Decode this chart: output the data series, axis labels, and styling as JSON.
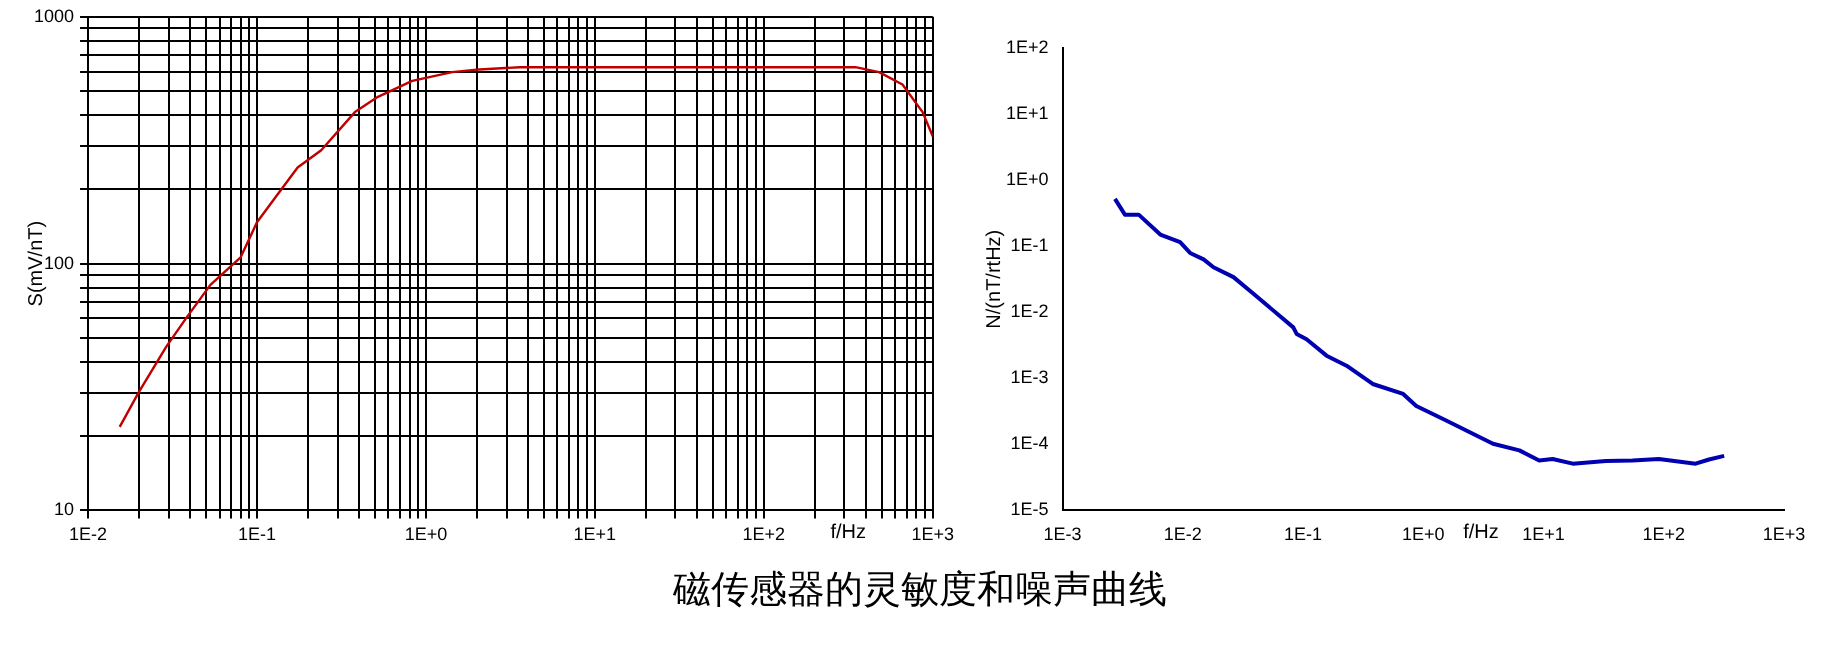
{
  "chart_data": [
    {
      "type": "line",
      "xlabel": "f/Hz",
      "ylabel": "S(mV/nT)",
      "log": "xy",
      "grid": true,
      "legend": false,
      "marker": "none",
      "line_style": "solid",
      "xlim": [
        0.01,
        1000
      ],
      "ylim": [
        10,
        1000
      ],
      "xticks": [
        {
          "value": 0.01,
          "label": "1E-2"
        },
        {
          "value": 0.02,
          "label": null
        },
        {
          "value": 0.03,
          "label": null
        },
        {
          "value": 0.04,
          "label": null
        },
        {
          "value": 0.05,
          "label": null
        },
        {
          "value": 0.06,
          "label": null
        },
        {
          "value": 0.07,
          "label": null
        },
        {
          "value": 0.08,
          "label": null
        },
        {
          "value": 0.09,
          "label": null
        },
        {
          "value": 0.1,
          "label": "1E-1"
        },
        {
          "value": 0.2,
          "label": null
        },
        {
          "value": 0.3,
          "label": null
        },
        {
          "value": 0.4,
          "label": null
        },
        {
          "value": 0.5,
          "label": null
        },
        {
          "value": 0.6,
          "label": null
        },
        {
          "value": 0.7,
          "label": null
        },
        {
          "value": 0.8,
          "label": null
        },
        {
          "value": 0.9,
          "label": null
        },
        {
          "value": 1,
          "label": "1E+0"
        },
        {
          "value": 2,
          "label": null
        },
        {
          "value": 3,
          "label": null
        },
        {
          "value": 4,
          "label": null
        },
        {
          "value": 5,
          "label": null
        },
        {
          "value": 6,
          "label": null
        },
        {
          "value": 7,
          "label": null
        },
        {
          "value": 8,
          "label": null
        },
        {
          "value": 9,
          "label": null
        },
        {
          "value": 10,
          "label": "1E+1"
        },
        {
          "value": 20,
          "label": null
        },
        {
          "value": 30,
          "label": null
        },
        {
          "value": 40,
          "label": null
        },
        {
          "value": 50,
          "label": null
        },
        {
          "value": 60,
          "label": null
        },
        {
          "value": 70,
          "label": null
        },
        {
          "value": 80,
          "label": null
        },
        {
          "value": 90,
          "label": null
        },
        {
          "value": 100,
          "label": "1E+2"
        },
        {
          "value": 200,
          "label": null
        },
        {
          "value": 300,
          "label": null
        },
        {
          "value": 400,
          "label": null
        },
        {
          "value": 500,
          "label": null
        },
        {
          "value": 600,
          "label": null
        },
        {
          "value": 700,
          "label": null
        },
        {
          "value": 800,
          "label": null
        },
        {
          "value": 900,
          "label": null
        },
        {
          "value": 1000,
          "label": "1E+3"
        }
      ],
      "yticks": [
        10,
        {
          "value": 20,
          "label": null
        },
        {
          "value": 30,
          "label": null
        },
        {
          "value": 40,
          "label": null
        },
        {
          "value": 50,
          "label": null
        },
        {
          "value": 60,
          "label": null
        },
        {
          "value": 70,
          "label": null
        },
        {
          "value": 80,
          "label": null
        },
        {
          "value": 90,
          "label": null
        },
        100,
        {
          "value": 200,
          "label": null
        },
        {
          "value": 300,
          "label": null
        },
        {
          "value": 400,
          "label": null
        },
        {
          "value": 500,
          "label": null
        },
        {
          "value": 600,
          "label": null
        },
        {
          "value": 700,
          "label": null
        },
        {
          "value": 800,
          "label": null
        },
        {
          "value": 900,
          "label": null
        },
        1000
      ],
      "series": [
        {
          "color": "#c00000",
          "x": [
            0.0154,
            0.0199,
            0.029,
            0.038,
            0.053,
            0.08,
            0.1,
            0.132,
            0.174,
            0.24,
            0.38,
            0.52,
            0.83,
            1.43,
            2.07,
            3.6,
            349,
            481,
            662,
            871,
            1000
          ],
          "values": [
            21.8,
            30,
            46,
            60,
            82,
            106,
            147,
            190,
            245,
            288,
            411,
            474,
            550,
            597,
            612,
            625,
            625,
            597,
            532,
            411,
            328
          ]
        }
      ],
      "annotations": [
        "磁传感器的灵敏度和噪声曲线"
      ]
    },
    {
      "type": "line",
      "xlabel": "f/Hz",
      "ylabel": "N/(nT/rtHz)",
      "log": "xy",
      "grid": false,
      "legend": false,
      "marker": "none",
      "line_style": "solid",
      "xlim": [
        0.001,
        1000
      ],
      "ylim": [
        1e-05,
        100
      ],
      "xticks": [
        {
          "value": 0.001,
          "label": "1E-3"
        },
        {
          "value": 0.01,
          "label": "1E-2"
        },
        {
          "value": 0.1,
          "label": "1E-1"
        },
        {
          "value": 1,
          "label": "1E+0"
        },
        {
          "value": 10,
          "label": "1E+1"
        },
        {
          "value": 100,
          "label": "1E+2"
        },
        {
          "value": 1000,
          "label": "1E+3"
        }
      ],
      "yticks": [
        {
          "value": 1e-05,
          "label": "1E-5"
        },
        {
          "value": 0.0001,
          "label": "1E-4"
        },
        {
          "value": 0.001,
          "label": "1E-3"
        },
        {
          "value": 0.01,
          "label": "1E-2"
        },
        {
          "value": 0.1,
          "label": "1E-1"
        },
        {
          "value": 1,
          "label": "1E+0"
        },
        {
          "value": 10,
          "label": "1E+1"
        },
        {
          "value": 100,
          "label": "1E+2"
        }
      ],
      "series": [
        {
          "color": "#0000b0",
          "x": [
            0.00273,
            0.0033,
            0.0043,
            0.0065,
            0.0095,
            0.0115,
            0.0149,
            0.018,
            0.0264,
            0.0387,
            0.083,
            0.0885,
            0.107,
            0.157,
            0.23,
            0.38,
            0.68,
            0.875,
            1.55,
            3.8,
            6.3,
            9.2,
            11.9,
            17.5,
            33,
            55,
            91,
            184,
            238,
            318
          ],
          "values": [
            0.52,
            0.3,
            0.3,
            0.15,
            0.115,
            0.079,
            0.063,
            0.048,
            0.034,
            0.019,
            0.0059,
            0.0047,
            0.0039,
            0.0022,
            0.00155,
            0.00082,
            0.00058,
            0.00038,
            0.00023,
            0.000102,
            8.1e-05,
            5.7e-05,
            6e-05,
            5.1e-05,
            5.6e-05,
            5.7e-05,
            6e-05,
            5.1e-05,
            5.9e-05,
            6.7e-05
          ]
        }
      ]
    }
  ]
}
